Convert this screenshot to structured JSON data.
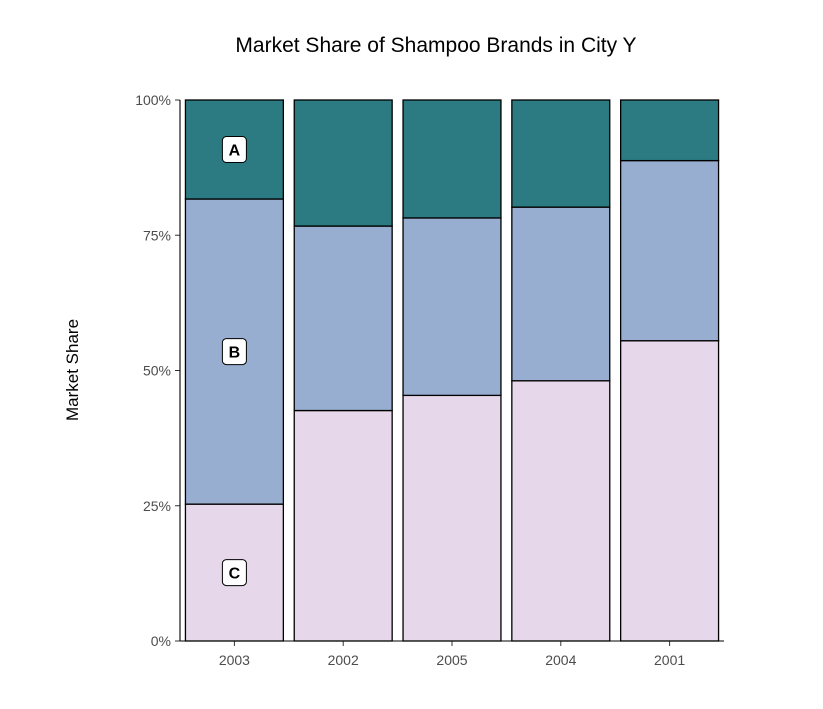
{
  "chart_data": {
    "type": "bar",
    "stacked": true,
    "title": "Market Share of Shampoo Brands in City Y",
    "xlabel": "",
    "ylabel": "Market Share",
    "categories": [
      "2003",
      "2002",
      "2005",
      "2004",
      "2001"
    ],
    "series": [
      {
        "name": "C",
        "color": "#e6d8ea",
        "values": [
          25.3,
          42.6,
          45.4,
          48.1,
          55.5
        ]
      },
      {
        "name": "B",
        "color": "#97aed1",
        "values": [
          56.4,
          34.1,
          32.8,
          32.1,
          33.3
        ]
      },
      {
        "name": "A",
        "color": "#2c7b83",
        "values": [
          18.3,
          23.3,
          21.8,
          19.8,
          11.2
        ]
      }
    ],
    "ylim": [
      0,
      100
    ],
    "yticks": [
      0,
      25,
      50,
      75,
      100
    ],
    "ytick_labels": [
      "0%",
      "25%",
      "50%",
      "75%",
      "100%"
    ],
    "grid": false,
    "legend": "none",
    "segment_labels_on_category": "2003"
  }
}
